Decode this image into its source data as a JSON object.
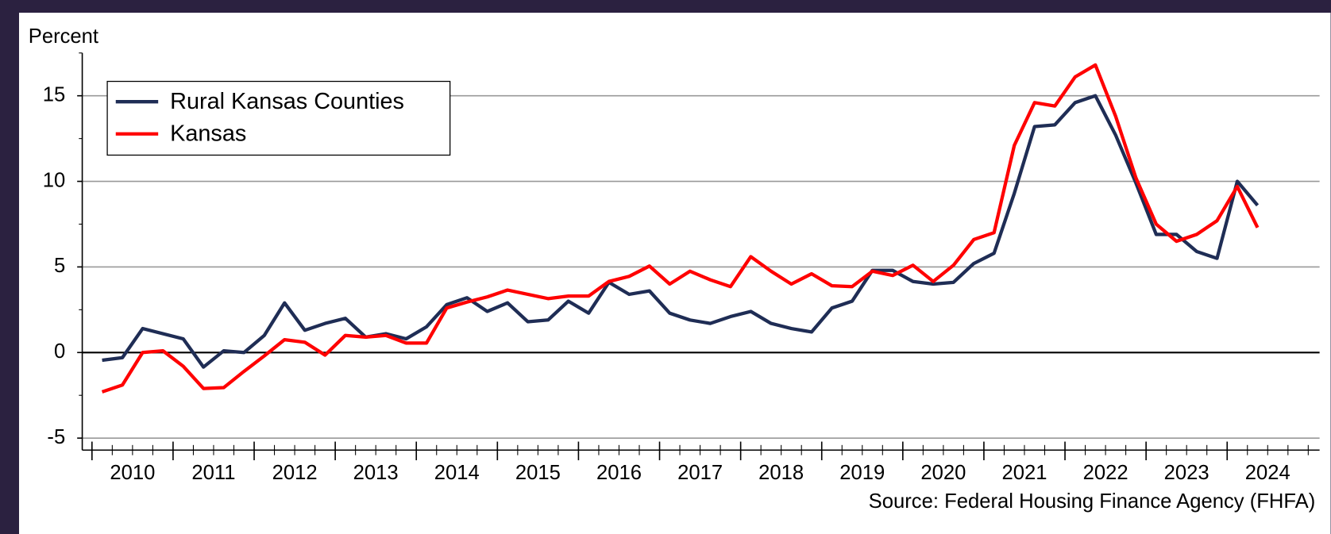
{
  "chart_data": {
    "type": "line",
    "y_label": "Percent",
    "source": "Source: Federal Housing Finance Agency (FHFA)",
    "x": [
      2010.125,
      2010.375,
      2010.625,
      2010.875,
      2011.125,
      2011.375,
      2011.625,
      2011.875,
      2012.125,
      2012.375,
      2012.625,
      2012.875,
      2013.125,
      2013.375,
      2013.625,
      2013.875,
      2014.125,
      2014.375,
      2014.625,
      2014.875,
      2015.125,
      2015.375,
      2015.625,
      2015.875,
      2016.125,
      2016.375,
      2016.625,
      2016.875,
      2017.125,
      2017.375,
      2017.625,
      2017.875,
      2018.125,
      2018.375,
      2018.625,
      2018.875,
      2019.125,
      2019.375,
      2019.625,
      2019.875,
      2020.125,
      2020.375,
      2020.625,
      2020.875,
      2021.125,
      2021.375,
      2021.625,
      2021.875,
      2022.125,
      2022.375,
      2022.625,
      2022.875,
      2023.125,
      2023.375,
      2023.625,
      2023.875,
      2024.125,
      2024.375
    ],
    "series": [
      {
        "name": "Rural Kansas Counties",
        "color": "#1f2d55",
        "values": [
          -0.45,
          -0.3,
          1.4,
          1.1,
          0.8,
          -0.85,
          0.1,
          0.0,
          1.0,
          2.9,
          1.3,
          1.7,
          2.0,
          0.9,
          1.1,
          0.8,
          1.5,
          2.8,
          3.2,
          2.4,
          2.9,
          1.8,
          1.9,
          3.0,
          2.3,
          4.1,
          3.4,
          3.6,
          2.3,
          1.9,
          1.7,
          2.1,
          2.4,
          1.7,
          1.4,
          1.2,
          2.6,
          3.0,
          4.8,
          4.8,
          4.15,
          4.0,
          4.1,
          5.2,
          5.8,
          9.3,
          13.2,
          13.3,
          14.6,
          15.0,
          12.7,
          9.9,
          6.9,
          6.9,
          5.9,
          5.5,
          10.0,
          8.6
        ]
      },
      {
        "name": "Kansas",
        "color": "#ff0000",
        "values": [
          -2.3,
          -1.9,
          0.0,
          0.1,
          -0.8,
          -2.1,
          -2.05,
          -1.1,
          -0.2,
          0.75,
          0.6,
          -0.15,
          1.0,
          0.9,
          1.0,
          0.55,
          0.55,
          2.6,
          2.95,
          3.25,
          3.65,
          3.4,
          3.15,
          3.3,
          3.3,
          4.15,
          4.45,
          5.05,
          4.0,
          4.75,
          4.25,
          3.85,
          5.6,
          4.75,
          4.0,
          4.6,
          3.9,
          3.85,
          4.75,
          4.5,
          5.1,
          4.15,
          5.1,
          6.6,
          7.0,
          12.1,
          14.6,
          14.4,
          16.1,
          16.8,
          13.8,
          10.2,
          7.5,
          6.5,
          6.9,
          7.7,
          9.7,
          7.3
        ]
      }
    ],
    "xlim": [
      2009.88,
      2025.14
    ],
    "xticks": [
      {
        "value": 2010.5,
        "label": "2010"
      },
      {
        "value": 2011.5,
        "label": "2011"
      },
      {
        "value": 2012.5,
        "label": "2012"
      },
      {
        "value": 2013.5,
        "label": "2013"
      },
      {
        "value": 2014.5,
        "label": "2014"
      },
      {
        "value": 2015.5,
        "label": "2015"
      },
      {
        "value": 2016.5,
        "label": "2016"
      },
      {
        "value": 2017.5,
        "label": "2017"
      },
      {
        "value": 2018.5,
        "label": "2018"
      },
      {
        "value": 2019.5,
        "label": "2019"
      },
      {
        "value": 2020.5,
        "label": "2020"
      },
      {
        "value": 2021.5,
        "label": "2021"
      },
      {
        "value": 2022.5,
        "label": "2022"
      },
      {
        "value": 2023.5,
        "label": "2023"
      },
      {
        "value": 2024.5,
        "label": "2024"
      }
    ],
    "ylim": [
      -5.7,
      17.5
    ],
    "yticks": [
      -5,
      0,
      5,
      10,
      15
    ],
    "grid": true,
    "legend": "upper-left"
  }
}
